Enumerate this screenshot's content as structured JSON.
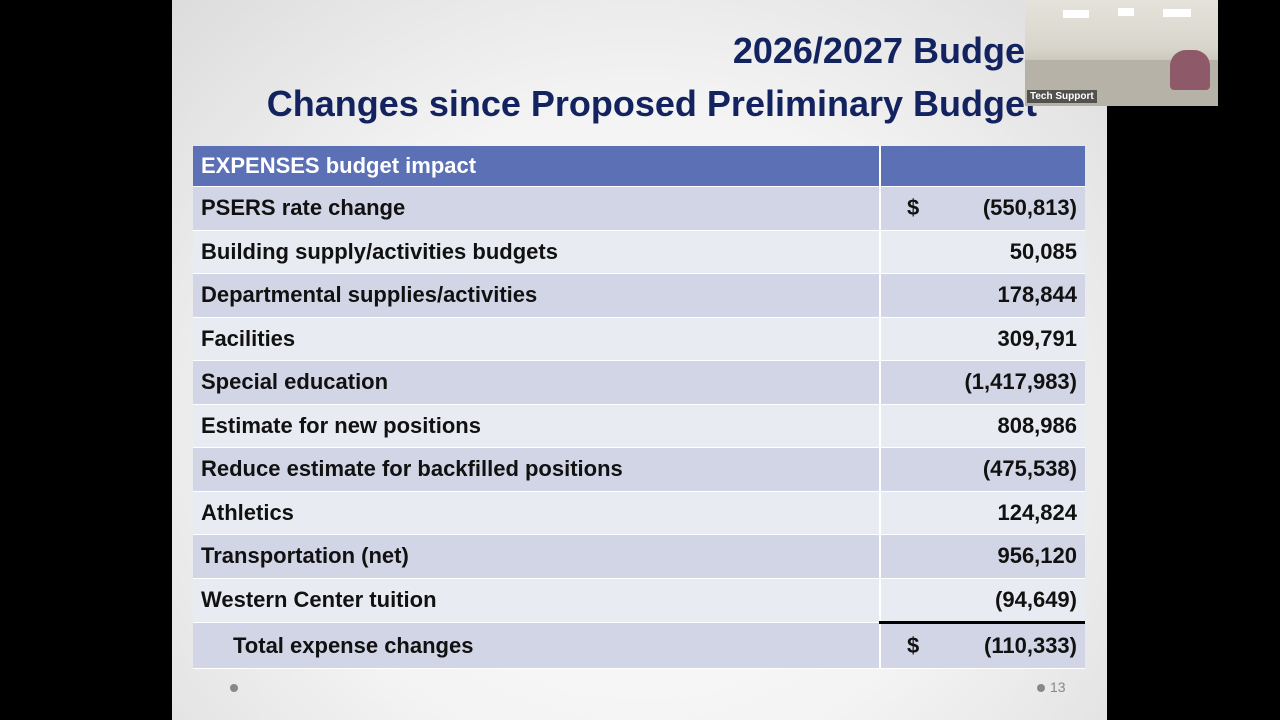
{
  "slide": {
    "title_line1": "2026/2027 Budget",
    "title_line2": "Changes since Proposed Preliminary Budget",
    "table": {
      "header": "EXPENSES budget impact",
      "rows": [
        {
          "label": "PSERS rate change",
          "currency": "$",
          "value": "(550,813)"
        },
        {
          "label": "Building supply/activities budgets",
          "value": "50,085"
        },
        {
          "label": "Departmental supplies/activities",
          "value": "178,844"
        },
        {
          "label": "Facilities",
          "value": "309,791"
        },
        {
          "label": "Special education",
          "value": "(1,417,983)"
        },
        {
          "label": "Estimate for new positions",
          "value": "808,986"
        },
        {
          "label": "Reduce estimate for backfilled positions",
          "value": "(475,538)"
        },
        {
          "label": "Athletics",
          "value": "124,824"
        },
        {
          "label": "Transportation (net)",
          "value": "956,120"
        },
        {
          "label": "Western Center tuition",
          "value": "(94,649)"
        }
      ],
      "total": {
        "label": "Total expense changes",
        "currency": "$",
        "value": "(110,333)"
      }
    },
    "page_number": "13",
    "colors": {
      "title": "#13235f",
      "header": "#5b70b5",
      "row_dark": "#d1d5e5",
      "row_light": "#e9ebf2"
    }
  },
  "video": {
    "participant_label": "Tech Support"
  }
}
